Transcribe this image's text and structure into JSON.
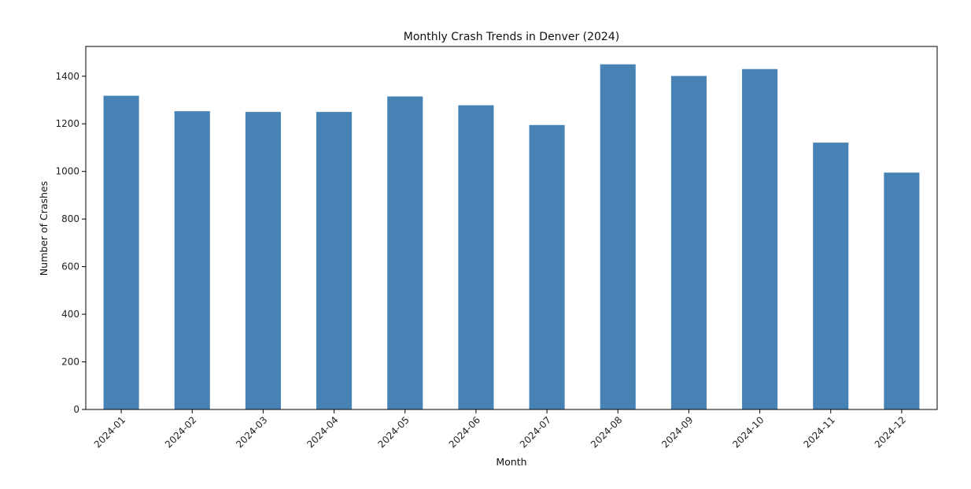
{
  "chart_data": {
    "type": "bar",
    "title": "Monthly Crash Trends in Denver (2024)",
    "xlabel": "Month",
    "ylabel": "Number of Crashes",
    "categories": [
      "2024-01",
      "2024-02",
      "2024-03",
      "2024-04",
      "2024-05",
      "2024-06",
      "2024-07",
      "2024-08",
      "2024-09",
      "2024-10",
      "2024-11",
      "2024-12"
    ],
    "values": [
      1318,
      1253,
      1250,
      1250,
      1315,
      1278,
      1195,
      1450,
      1401,
      1430,
      1121,
      995
    ],
    "ylim": [
      0,
      1525
    ],
    "yticks": [
      0,
      200,
      400,
      600,
      800,
      1000,
      1200,
      1400
    ],
    "grid": false,
    "legend": "none",
    "bar_color": "#4682b4"
  }
}
